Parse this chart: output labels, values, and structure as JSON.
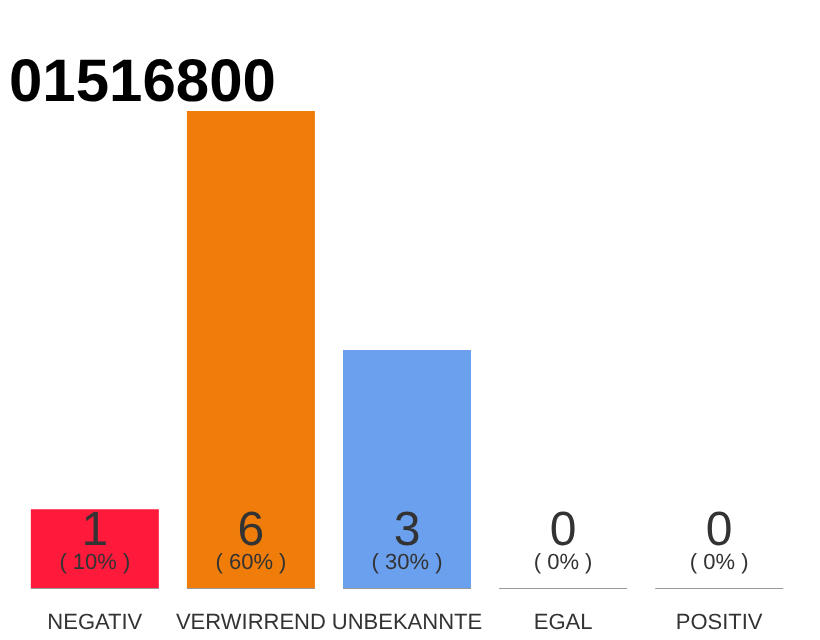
{
  "chart_data": {
    "type": "bar",
    "title": "01516800",
    "categories": [
      "NEGATIV",
      "VERWIRREND",
      "UNBEKANNTE",
      "EGAL",
      "POSITIV"
    ],
    "values": [
      1,
      6,
      3,
      0,
      0
    ],
    "colors": [
      "#ff1a3c",
      "#f07d0a",
      "#6aa0ee",
      "#e0e0e0",
      "#e0e0e0"
    ],
    "data_labels": true,
    "annotations": [
      "( 10% )",
      "( 60% )",
      "( 30% )",
      "( 0% )",
      "( 0% )"
    ]
  }
}
